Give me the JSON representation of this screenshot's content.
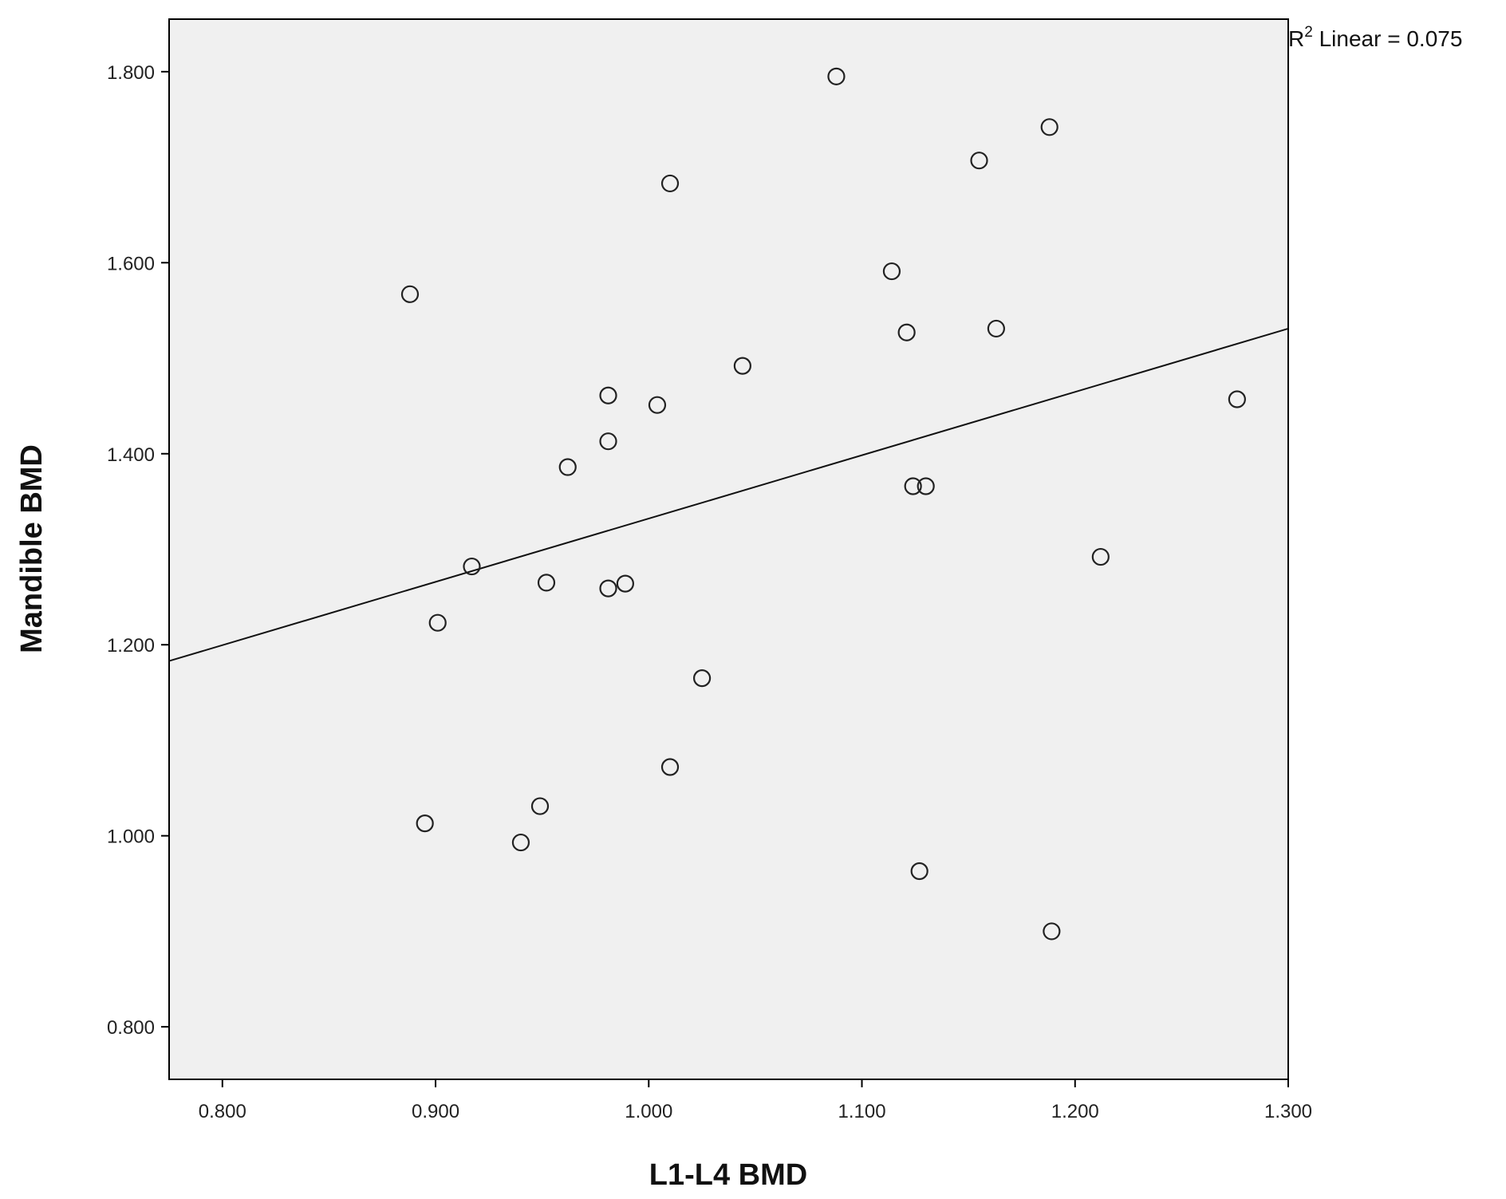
{
  "chart_data": {
    "type": "scatter",
    "xlabel": "L1-L4 BMD",
    "ylabel": "Mandible BMD",
    "annotation": {
      "prefix": "R",
      "superscript": "2",
      "text": " Linear = 0.075"
    },
    "xlim": [
      0.775,
      1.3
    ],
    "ylim": [
      0.745,
      1.855
    ],
    "xticks": [
      0.8,
      0.9,
      1.0,
      1.1,
      1.2,
      1.3
    ],
    "xtick_labels": [
      "0.800",
      "0.900",
      "1.000",
      "1.100",
      "1.200",
      "1.300"
    ],
    "yticks": [
      0.8,
      1.0,
      1.2,
      1.4,
      1.6,
      1.8
    ],
    "ytick_labels": [
      "0.800",
      "1.000",
      "1.200",
      "1.400",
      "1.600",
      "1.800"
    ],
    "points": [
      {
        "x": 0.888,
        "y": 1.567
      },
      {
        "x": 0.895,
        "y": 1.013
      },
      {
        "x": 0.901,
        "y": 1.223
      },
      {
        "x": 0.917,
        "y": 1.282
      },
      {
        "x": 0.94,
        "y": 0.993
      },
      {
        "x": 0.949,
        "y": 1.031
      },
      {
        "x": 0.952,
        "y": 1.265
      },
      {
        "x": 0.962,
        "y": 1.386
      },
      {
        "x": 0.981,
        "y": 1.461
      },
      {
        "x": 0.981,
        "y": 1.413
      },
      {
        "x": 0.981,
        "y": 1.259
      },
      {
        "x": 0.989,
        "y": 1.264
      },
      {
        "x": 1.004,
        "y": 1.451
      },
      {
        "x": 1.01,
        "y": 1.683
      },
      {
        "x": 1.01,
        "y": 1.072
      },
      {
        "x": 1.025,
        "y": 1.165
      },
      {
        "x": 1.044,
        "y": 1.492
      },
      {
        "x": 1.088,
        "y": 1.795
      },
      {
        "x": 1.114,
        "y": 1.591
      },
      {
        "x": 1.121,
        "y": 1.527
      },
      {
        "x": 1.124,
        "y": 1.366
      },
      {
        "x": 1.13,
        "y": 1.366
      },
      {
        "x": 1.127,
        "y": 0.963
      },
      {
        "x": 1.155,
        "y": 1.707
      },
      {
        "x": 1.163,
        "y": 1.531
      },
      {
        "x": 1.188,
        "y": 1.742
      },
      {
        "x": 1.189,
        "y": 0.9
      },
      {
        "x": 1.212,
        "y": 1.292
      },
      {
        "x": 1.276,
        "y": 1.457
      }
    ],
    "fit_line": {
      "x": [
        0.775,
        1.3
      ],
      "y": [
        1.183,
        1.531
      ]
    },
    "colors": {
      "plot_background": "#f0f0f0",
      "marker_stroke": "#222222",
      "line": "#111111"
    }
  }
}
